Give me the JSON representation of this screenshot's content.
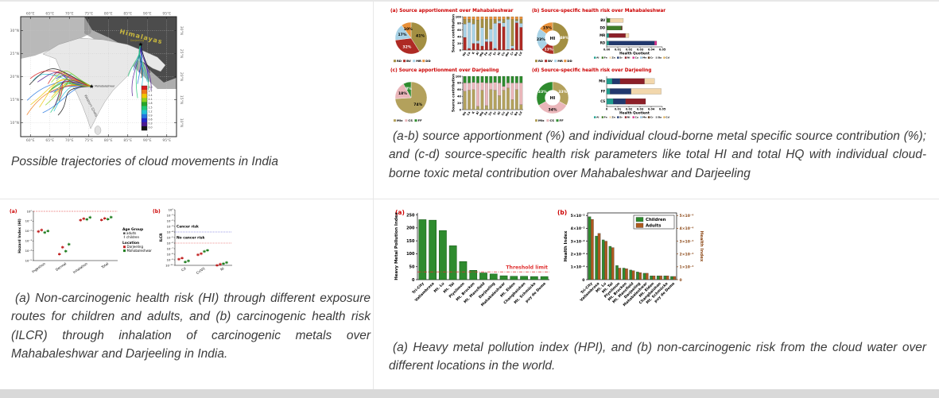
{
  "page": {
    "bg": "#ffffff",
    "grid_color": "#e7e7e7",
    "scrollbar_color": "#d9d9d9",
    "caption_color": "#3b3b3b",
    "panel_letter_color": "#cc0000"
  },
  "captions": {
    "map": "Possible trajectories of cloud movements in India",
    "top_right": "(a-b) source apportionment (%) and individual cloud-borne metal specific source contribution (%); and (c-d) source-specific health risk parameters like total HI and total HQ with individual cloud-borne toxic metal contribution over Mahabaleshwar and Darjeeling",
    "bottom_left": "(a) Non-carcinogenic health risk (HI) through different exposure routes for children and adults, and (b) carcinogenic health risk (ILCR) through inhalation of carcinogenic metals over Mahabaleshwar and Darjeeling in India.",
    "bottom_right": "(a) Heavy metal pollution index (HPI), and (b) non-carcinogenic risk from the cloud water over different locations in the world."
  },
  "map_figure": {
    "labels": {
      "region": "Himalayas",
      "site_west": "Mahabaleshwar",
      "site_east": "Darjeeling",
      "coast": "Western Ghats"
    },
    "lon_ticks": [
      "60°E",
      "65°E",
      "70°E",
      "75°E",
      "80°E",
      "85°E",
      "90°E",
      "95°E"
    ],
    "lat_ticks": [
      "30°N",
      "25°N",
      "20°N",
      "15°N",
      "10°N"
    ],
    "colorbar_ticks": [
      "3.0",
      "2.7",
      "2.4",
      "2.1",
      "1.8",
      "1.5",
      "1.2",
      "0.9",
      "0.6",
      "0.3",
      "0.0"
    ],
    "palette": [
      "#d81e1e",
      "#f07818",
      "#f0c400",
      "#8cd020",
      "#28a428",
      "#20c878",
      "#20c0d4",
      "#2274e0",
      "#2424c8",
      "#4c1890",
      "#141414"
    ]
  },
  "metal_colors": {
    "Al": "#1f9e8e",
    "Fe": "#3f7d28",
    "Zn": "#f2d7ac",
    "Sr": "#21386e",
    "Ni": "#8c1f28",
    "Cu": "#d9318e",
    "Mn": "#8fbcd9",
    "Cr": "#5d3a1a",
    "Ba": "#9e9e9e",
    "Cd": "#e0b460"
  },
  "chart_data": [
    {
      "id": "pie_a",
      "type": "pie",
      "title": "(a) Source apportionment over Mahabaleshwar",
      "slices": [
        {
          "label": "RD",
          "pct": 41,
          "color": "#a38f42",
          "text": "41%",
          "text_color": "#000000"
        },
        {
          "label": "BV",
          "pct": 32,
          "color": "#ae2a24",
          "text": "32%",
          "text_color": "#ffffff"
        },
        {
          "label": "MR",
          "pct": 17,
          "color": "#a8d2e6",
          "text": "17%",
          "text_color": "#000000"
        },
        {
          "label": "DD",
          "pct": 10,
          "color": "#e8913a",
          "text": "10%",
          "text_color": "#000000"
        }
      ],
      "legend": [
        "RD",
        "BV",
        "MR",
        "DD"
      ]
    },
    {
      "id": "bars_a",
      "type": "bar",
      "stacked": true,
      "ylabel": "Source contribution",
      "ymax": 100,
      "yticks": [
        0,
        20,
        40,
        60,
        80,
        100
      ],
      "categories": [
        "Na",
        "Ca",
        "K",
        "Al",
        "Mg",
        "Fe",
        "Zn",
        "Sr",
        "Ni",
        "Cu",
        "Mn",
        "Cr",
        "Ba",
        "Cd"
      ],
      "series": [
        {
          "name": "BV",
          "color": "#ae2a24",
          "values": [
            38,
            5,
            20,
            20,
            12,
            25,
            25,
            5,
            80,
            70,
            2,
            5,
            82,
            68
          ]
        },
        {
          "name": "MR",
          "color": "#a8d2e6",
          "values": [
            40,
            78,
            58,
            8,
            55,
            8,
            38,
            75,
            8,
            12,
            90,
            8,
            5,
            12
          ]
        },
        {
          "name": "RD",
          "color": "#a38f42",
          "values": [
            14,
            9,
            14,
            62,
            25,
            59,
            29,
            12,
            4,
            10,
            6,
            79,
            5,
            12
          ]
        },
        {
          "name": "DD",
          "color": "#e8913a",
          "values": [
            8,
            8,
            8,
            10,
            8,
            8,
            8,
            8,
            8,
            8,
            2,
            8,
            8,
            8
          ]
        }
      ]
    },
    {
      "id": "donut_b",
      "type": "pie",
      "title": "(b) Source-specific health risk over Mahabaleshwar",
      "center_label": "HI",
      "slices": [
        {
          "label": "RD",
          "pct": 49,
          "color": "#a38f42",
          "text": "49%",
          "text_color": "#ffffff"
        },
        {
          "label": "BV",
          "pct": 13,
          "color": "#ae2a24",
          "text": "13%",
          "text_color": "#ffffff"
        },
        {
          "label": "MR",
          "pct": 23,
          "color": "#a8d2e6",
          "text": "23%",
          "text_color": "#000000"
        },
        {
          "label": "DD",
          "pct": 15,
          "color": "#e8913a",
          "text": "15%",
          "text_color": "#000000"
        }
      ],
      "legend": [
        "RD",
        "BV",
        "MR",
        "DD"
      ]
    },
    {
      "id": "hbars_b",
      "type": "bar",
      "orientation": "horizontal",
      "xlabel": "Health Quotient",
      "xticks": [
        "0.00",
        "0.01",
        "0.02",
        "0.03",
        "0.04",
        "0.05"
      ],
      "xmax": 0.05,
      "rows": [
        {
          "label": "BV",
          "segments": [
            [
              "Fe",
              0.003
            ],
            [
              "Zn",
              0.012
            ]
          ]
        },
        {
          "label": "DD",
          "segments": [
            [
              "Fe",
              0.013
            ],
            [
              "Cr",
              0.001
            ]
          ]
        },
        {
          "label": "MR",
          "segments": [
            [
              "Al",
              0.002
            ],
            [
              "Ni",
              0.015
            ],
            [
              "Zn",
              0.003
            ]
          ]
        },
        {
          "label": "RD",
          "segments": [
            [
              "Al",
              0.002
            ],
            [
              "Sr",
              0.041
            ],
            [
              "Cu",
              0.002
            ]
          ]
        }
      ],
      "legend": [
        "Al",
        "Fe",
        "Zn",
        "Sr",
        "Ni",
        "Cu",
        "Mn",
        "Cr",
        "Ba",
        "Cd"
      ]
    },
    {
      "id": "pie_c",
      "type": "pie",
      "title": "(c) Source apportionment over Darjeeling",
      "slices": [
        {
          "label": "Mix",
          "pct": 74,
          "color": "#b3a15c",
          "text": "74%",
          "text_color": "#000000"
        },
        {
          "label": "CS",
          "pct": 18,
          "color": "#eab6ba",
          "text": "18%",
          "text_color": "#000000"
        },
        {
          "label": "FF",
          "pct": 8,
          "color": "#2e8b2e",
          "text": "8%",
          "text_color": "#ffffff"
        }
      ],
      "legend": [
        "Mix",
        "CS",
        "FF"
      ]
    },
    {
      "id": "bars_c",
      "type": "bar",
      "stacked": true,
      "ylabel": "Source contribution",
      "ymax": 100,
      "yticks": [
        0,
        20,
        40,
        60,
        80,
        100
      ],
      "categories": [
        "Na",
        "Ca",
        "K",
        "Al",
        "Mg",
        "Fe",
        "Zn",
        "Sr",
        "Ni",
        "Cu",
        "Mn",
        "Cr",
        "Ba",
        "Cd"
      ],
      "series": [
        {
          "name": "Mix",
          "color": "#b3a15c",
          "values": [
            55,
            58,
            60,
            10,
            58,
            12,
            60,
            58,
            42,
            58,
            65,
            30,
            60,
            15
          ]
        },
        {
          "name": "CS",
          "color": "#eab6ba",
          "values": [
            25,
            22,
            22,
            70,
            24,
            68,
            20,
            24,
            38,
            12,
            15,
            50,
            20,
            65
          ]
        },
        {
          "name": "FF",
          "color": "#2e8b2e",
          "values": [
            20,
            20,
            18,
            20,
            18,
            20,
            20,
            18,
            20,
            30,
            20,
            20,
            20,
            20
          ]
        }
      ]
    },
    {
      "id": "donut_d",
      "type": "pie",
      "title": "(d) Source-specific health risk over Darjeeling",
      "center_label": "HI",
      "slices": [
        {
          "label": "Mix",
          "pct": 33,
          "color": "#b3a15c",
          "text": "33%",
          "text_color": "#ffffff"
        },
        {
          "label": "CS",
          "pct": 34,
          "color": "#eab6ba",
          "text": "34%",
          "text_color": "#000000"
        },
        {
          "label": "FF",
          "pct": 33,
          "color": "#2e8b2e",
          "text": "33%",
          "text_color": "#ffffff"
        }
      ],
      "legend": [
        "Mix",
        "CS",
        "FF"
      ]
    },
    {
      "id": "hbars_d",
      "type": "bar",
      "orientation": "horizontal",
      "xlabel": "Health Quotient",
      "xticks": [
        "0",
        "0.01",
        "0.02",
        "0.03",
        "0.04",
        "0.05"
      ],
      "xmax": 0.05,
      "rows": [
        {
          "label": "Mix",
          "segments": [
            [
              "Al",
              0.005
            ],
            [
              "Sr",
              0.007
            ],
            [
              "Ni",
              0.022
            ],
            [
              "Zn",
              0.009
            ]
          ]
        },
        {
          "label": "FF",
          "segments": [
            [
              "Al",
              0.003
            ],
            [
              "Sr",
              0.019
            ],
            [
              "Zn",
              0.027
            ]
          ]
        },
        {
          "label": "CS",
          "segments": [
            [
              "Al",
              0.006
            ],
            [
              "Sr",
              0.011
            ],
            [
              "Ni",
              0.018
            ]
          ]
        }
      ],
      "legend": [
        "Al",
        "Fe",
        "Zn",
        "Sr",
        "Ni",
        "Cu",
        "Mn",
        "Cr",
        "Ba",
        "Cd"
      ]
    },
    {
      "id": "scatter_hi",
      "type": "scatter",
      "panel": "(a)",
      "ylabel": "Hazard Index (HI)",
      "yticks": [
        "10⁰",
        "10⁻¹",
        "10⁻²",
        "10⁻³",
        "10⁻⁴",
        "10⁻⁵"
      ],
      "log_range": [
        0,
        -5
      ],
      "categories": [
        "Ingestion",
        "Dermal",
        "Inhalation",
        "Total"
      ],
      "ref_lines": [
        {
          "log": 0,
          "color": "#e03030",
          "dash": "2 1.2"
        }
      ],
      "groups": [
        {
          "location": "Darjeeling",
          "color": "#c02020",
          "adults": [
            -2.05,
            -4.35,
            -0.9,
            -0.88
          ],
          "children": [
            -1.9,
            -3.65,
            -0.75,
            -0.72
          ]
        },
        {
          "location": "Mahabaleshwar",
          "color": "#1e7d1e",
          "adults": [
            -2.15,
            -4.05,
            -0.82,
            -0.8
          ],
          "children": [
            -2.0,
            -3.35,
            -0.62,
            -0.6
          ]
        }
      ],
      "legend": {
        "age_title": "Age Group",
        "ages": [
          "adults",
          "children"
        ],
        "loc_title": "Location",
        "locations": [
          "Darjeeling",
          "Mahabaleshwar"
        ],
        "loc_colors": [
          "#c02020",
          "#1e7d1e"
        ]
      }
    },
    {
      "id": "scatter_ilcr",
      "type": "scatter",
      "panel": "(b)",
      "ylabel": "ILCR",
      "yticks": [
        "10⁰",
        "10⁻¹",
        "10⁻²",
        "10⁻³",
        "10⁻⁴",
        "10⁻⁵",
        "10⁻⁶",
        "10⁻⁷",
        "10⁻⁸",
        "10⁻⁹",
        "10⁻¹⁰"
      ],
      "log_range": [
        0,
        -10
      ],
      "categories": [
        "Cd",
        "Cr(VI)",
        "Ni"
      ],
      "annotations": [
        {
          "text": "Cancer risk",
          "log": -3.2
        },
        {
          "text": "No cancer risk",
          "log": -5.2
        }
      ],
      "ref_lines": [
        {
          "log": -4,
          "color": "#4040d0",
          "dash": "1 1"
        },
        {
          "log": -6,
          "color": "#e03030",
          "dash": "1 1"
        }
      ],
      "groups": [
        {
          "location": "Darjeeling",
          "color": "#c02020",
          "adults": [
            -8.9,
            -8.1,
            -10.0
          ],
          "children": [
            -8.7,
            -7.9,
            -9.8
          ]
        },
        {
          "location": "Mahabaleshwar",
          "color": "#1e7d1e",
          "adults": [
            -9.4,
            -7.5,
            -9.7
          ],
          "children": [
            -9.2,
            -7.3,
            -9.5
          ]
        }
      ]
    },
    {
      "id": "hpi_bars",
      "type": "bar",
      "panel": "(a)",
      "ylabel": "Heavy Metal Pollution Index",
      "yticks": [
        0,
        50,
        100,
        150,
        200,
        250
      ],
      "ymax": 258,
      "categories": [
        "Tri-City",
        "Vallambrosa",
        "Mt. Lu",
        "Mt. Tai",
        "Plynlimon",
        "Mt. Brocken",
        "Mt. Mansfield",
        "Darjeeling",
        "Mahabaleshwar",
        "Mt. Elden",
        "Changbaishan",
        "Mt. Schmücke",
        "puy de Dome"
      ],
      "values": [
        232,
        230,
        190,
        131,
        70,
        36,
        26,
        22,
        15,
        13,
        13,
        12,
        12
      ],
      "bar_color": "#2e8b2e",
      "bar_edge": "#145214",
      "threshold": {
        "value": 30,
        "label": "Threshold limit",
        "color": "#e03030"
      }
    },
    {
      "id": "health_index_bars",
      "type": "bar",
      "grouped": true,
      "panel": "(b)",
      "ylabel_left": "Health Index",
      "ylabel_right": "Health Index",
      "yticks_left": [
        "0",
        "1×10⁻²",
        "2×10⁻²",
        "3×10⁻²",
        "4×10⁻²",
        "5×10⁻²"
      ],
      "yticks_right": [
        "0",
        "1×10⁻⁴",
        "2×10⁻⁴",
        "3×10⁻⁴",
        "4×10⁻⁴",
        "5×10⁻⁴"
      ],
      "ymax": 5.2,
      "right_axis_color": "#8a4513",
      "categories": [
        "Tri-City",
        "Vallambrosa",
        "Mt. Lu",
        "Mt. Tai",
        "Plynlimon",
        "Mt. Brocken",
        "Mt. Mansfield",
        "Darjeeling",
        "Mahabaleshwar",
        "Mt. Elden",
        "Changbaishan",
        "Mt. Schmücke",
        "puy de Dome"
      ],
      "series": [
        {
          "name": "Children",
          "color": "#2e8b2e",
          "values": [
            4.9,
            3.4,
            3.1,
            2.6,
            1.1,
            0.9,
            0.75,
            0.6,
            0.5,
            0.3,
            0.3,
            0.3,
            0.25
          ]
        },
        {
          "name": "Adults",
          "color": "#b05a1e",
          "values": [
            4.7,
            3.6,
            3.0,
            2.5,
            0.9,
            0.85,
            0.7,
            0.55,
            0.5,
            0.3,
            0.3,
            0.3,
            0.25
          ]
        }
      ]
    }
  ]
}
